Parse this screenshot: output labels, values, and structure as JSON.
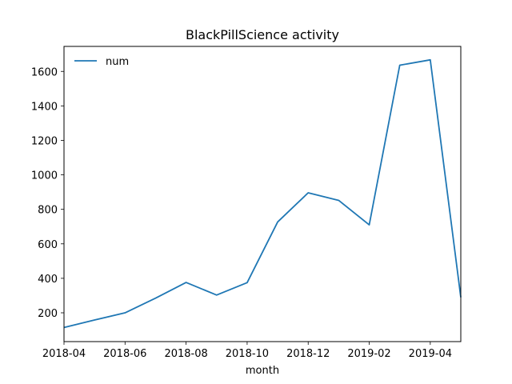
{
  "chart_data": {
    "type": "line",
    "title": "BlackPillScience activity",
    "xlabel": "month",
    "ylabel": "",
    "x": [
      "2018-04",
      "2018-05",
      "2018-06",
      "2018-07",
      "2018-08",
      "2018-09",
      "2018-10",
      "2018-11",
      "2018-12",
      "2019-01",
      "2019-02",
      "2019-03",
      "2019-04",
      "2019-05"
    ],
    "series": [
      {
        "name": "num",
        "color": "#1f77b4",
        "values": [
          115,
          158,
          200,
          285,
          376,
          303,
          375,
          727,
          896,
          852,
          710,
          1636,
          1667,
          290
        ]
      }
    ],
    "xticks": [
      "2018-04",
      "2018-06",
      "2018-08",
      "2018-10",
      "2018-12",
      "2019-02",
      "2019-04"
    ],
    "yticks": [
      200,
      400,
      600,
      800,
      1000,
      1200,
      1400,
      1600
    ],
    "xlim": [
      "2018-04",
      "2019-05"
    ],
    "ylim": [
      33,
      1745
    ],
    "grid": false,
    "legend": "top-left"
  }
}
